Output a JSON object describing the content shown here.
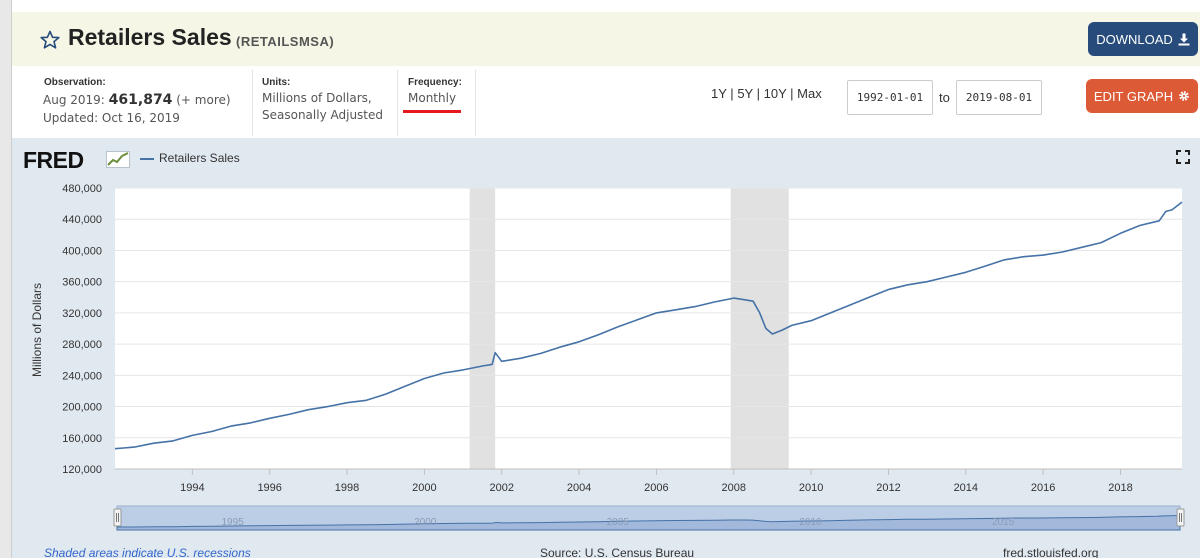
{
  "header": {
    "title": "Retailers Sales",
    "series_id": "(RETAILSMSA)",
    "download_label": "DOWNLOAD",
    "edit_label": "EDIT GRAPH"
  },
  "meta": {
    "observation_label": "Observation:",
    "observation_date": "Aug 2019:",
    "observation_value": "461,874",
    "observation_more": "(+ more)",
    "updated": "Updated: Oct 16, 2019",
    "units_label": "Units:",
    "units_line1": "Millions of Dollars,",
    "units_line2": "Seasonally Adjusted",
    "frequency_label": "Frequency:",
    "frequency_value": "Monthly"
  },
  "range": {
    "links": [
      "1Y",
      "5Y",
      "10Y",
      "Max"
    ],
    "separator": "|",
    "start": "1992-01-01",
    "to_label": "to",
    "end": "2019-08-01"
  },
  "chart_data": {
    "type": "line",
    "title": "",
    "logo": "FRED",
    "xlabel": "",
    "ylabel": "Millions of Dollars",
    "ylim": [
      120000,
      480000
    ],
    "y_ticks": [
      120000,
      160000,
      200000,
      240000,
      280000,
      320000,
      360000,
      400000,
      440000,
      480000
    ],
    "y_tick_labels": [
      "120,000",
      "160,000",
      "200,000",
      "240,000",
      "280,000",
      "320,000",
      "360,000",
      "400,000",
      "440,000",
      "480,000"
    ],
    "xlim": [
      1992.0,
      2019.59
    ],
    "x_ticks": [
      1994,
      1996,
      1998,
      2000,
      2002,
      2004,
      2006,
      2008,
      2010,
      2012,
      2014,
      2016,
      2018
    ],
    "grid": "horizontal",
    "legend_position": "top-left",
    "series": [
      {
        "name": "Retailers Sales",
        "color": "#4572a7",
        "x": [
          1992.0,
          1992.5,
          1993.0,
          1993.5,
          1994.0,
          1994.5,
          1995.0,
          1995.5,
          1996.0,
          1996.5,
          1997.0,
          1997.5,
          1998.0,
          1998.5,
          1999.0,
          1999.5,
          2000.0,
          2000.5,
          2001.0,
          2001.5,
          2001.75,
          2001.83,
          2002.0,
          2002.5,
          2003.0,
          2003.5,
          2004.0,
          2004.5,
          2005.0,
          2005.5,
          2006.0,
          2006.5,
          2007.0,
          2007.5,
          2008.0,
          2008.25,
          2008.5,
          2008.67,
          2008.83,
          2009.0,
          2009.25,
          2009.5,
          2010.0,
          2010.5,
          2011.0,
          2011.5,
          2012.0,
          2012.5,
          2013.0,
          2013.5,
          2014.0,
          2014.5,
          2015.0,
          2015.5,
          2016.0,
          2016.5,
          2017.0,
          2017.5,
          2018.0,
          2018.5,
          2019.0,
          2019.17,
          2019.33,
          2019.59
        ],
        "values": [
          146000,
          148000,
          153000,
          156000,
          163000,
          168000,
          175000,
          179000,
          185000,
          190000,
          196000,
          200000,
          205000,
          208000,
          216000,
          226000,
          236000,
          243000,
          247000,
          252000,
          254000,
          269000,
          258000,
          262000,
          268000,
          276000,
          283000,
          292000,
          302000,
          311000,
          320000,
          324000,
          328000,
          334000,
          339000,
          337000,
          335000,
          320000,
          300000,
          293000,
          298000,
          304000,
          310000,
          320000,
          330000,
          340000,
          350000,
          356000,
          360000,
          366000,
          372000,
          380000,
          388000,
          392000,
          394000,
          398000,
          404000,
          410000,
          422000,
          432000,
          438000,
          450000,
          452000,
          461874
        ]
      }
    ],
    "recessions": [
      [
        2001.17,
        2001.83
      ],
      [
        2007.92,
        2009.42
      ]
    ],
    "navigator_labels": [
      "1995",
      "2000",
      "2005",
      "2010",
      "2015"
    ]
  },
  "footer": {
    "note": "Shaded areas indicate U.S. recessions",
    "source": "Source: U.S. Census Bureau",
    "site": "fred.stlouisfed.org"
  }
}
